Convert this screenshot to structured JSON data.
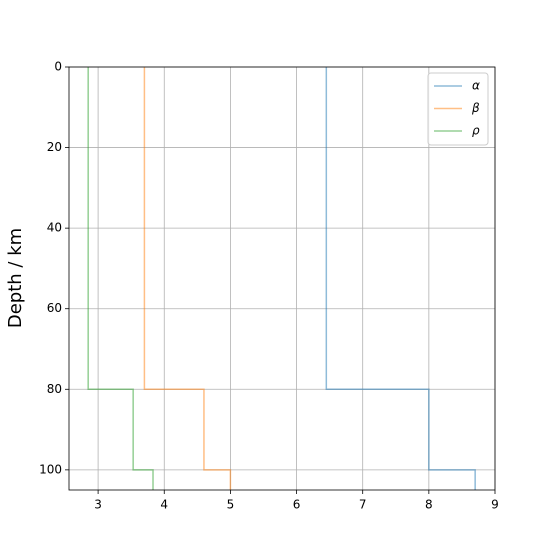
{
  "chart_data": {
    "type": "step",
    "y_label": "Depth / km",
    "xlim": [
      2.56,
      9
    ],
    "xticks": [
      3,
      4,
      5,
      6,
      7,
      8,
      9
    ],
    "ylim": [
      105,
      0
    ],
    "yticks": [
      0,
      20,
      40,
      60,
      80,
      100
    ],
    "grid": true,
    "legend": "upper right",
    "line_opacity": 0.5,
    "series": [
      {
        "name": "α",
        "color": "#1f77b4",
        "x": [
          6.45,
          6.45,
          8.0,
          8.0,
          8.7,
          8.7
        ],
        "y": [
          0,
          80,
          80,
          100,
          100,
          105
        ]
      },
      {
        "name": "β",
        "color": "#ff7f0e",
        "x": [
          3.7,
          3.7,
          4.6,
          4.6,
          5.0,
          5.0
        ],
        "y": [
          0,
          80,
          80,
          100,
          100,
          105
        ]
      },
      {
        "name": "ρ",
        "color": "#2ca02c",
        "x": [
          2.85,
          2.85,
          3.53,
          3.53,
          3.83,
          3.83
        ],
        "y": [
          0,
          80,
          80,
          100,
          100,
          105
        ]
      }
    ]
  }
}
